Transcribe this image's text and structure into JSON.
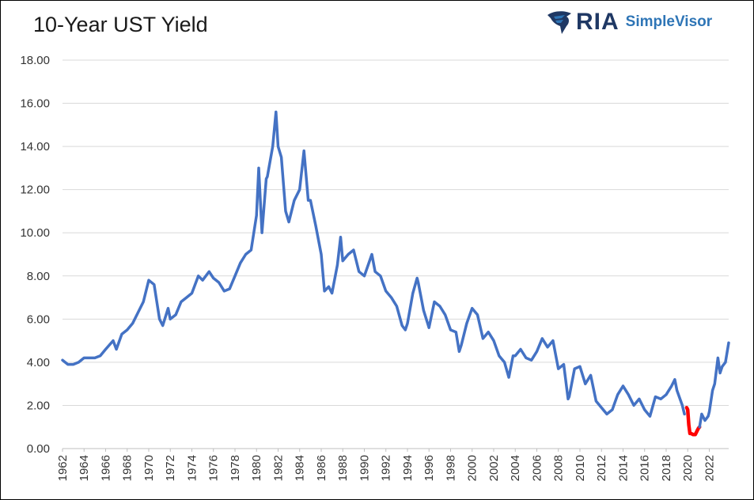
{
  "header": {
    "title": "10-Year UST Yield",
    "logo_ria": "RIA",
    "logo_simplevisor": "SimpleVisor"
  },
  "colors": {
    "series_main": "#4472c4",
    "series_highlight": "#ff0000",
    "grid": "#d9d9d9",
    "logo_dark": "#1f3864",
    "logo_blue": "#2e75b6"
  },
  "chart_data": {
    "type": "line",
    "title": "10-Year UST Yield",
    "xlabel": "",
    "ylabel": "",
    "xlim": [
      1962,
      2023.8
    ],
    "ylim": [
      0,
      18
    ],
    "y_ticks": [
      "0.00",
      "2.00",
      "4.00",
      "6.00",
      "8.00",
      "10.00",
      "12.00",
      "14.00",
      "16.00",
      "18.00"
    ],
    "x_ticks": [
      "1962",
      "1964",
      "1966",
      "1968",
      "1970",
      "1972",
      "1974",
      "1976",
      "1978",
      "1980",
      "1982",
      "1984",
      "1986",
      "1988",
      "1990",
      "1992",
      "1994",
      "1996",
      "1998",
      "2000",
      "2002",
      "2004",
      "2006",
      "2008",
      "2010",
      "2012",
      "2014",
      "2016",
      "2018",
      "2020",
      "2022"
    ],
    "grid": true,
    "legend": "none",
    "series": [
      {
        "color": "#4472c4",
        "x": [
          1962.0,
          1962.5,
          1963.0,
          1963.5,
          1964.0,
          1964.5,
          1965.0,
          1965.5,
          1966.0,
          1966.7,
          1967.0,
          1967.5,
          1968.0,
          1968.5,
          1969.0,
          1969.5,
          1970.0,
          1970.5,
          1971.0,
          1971.3,
          1971.8,
          1972.0,
          1972.5,
          1973.0,
          1973.5,
          1974.0,
          1974.6,
          1975.0,
          1975.6,
          1976.0,
          1976.5,
          1977.0,
          1977.5,
          1978.0,
          1978.5,
          1979.0,
          1979.5,
          1980.0,
          1980.2,
          1980.5,
          1980.9,
          1981.0,
          1981.5,
          1981.8,
          1982.0,
          1982.3,
          1982.7,
          1983.0,
          1983.5,
          1984.0,
          1984.4,
          1984.8,
          1985.0,
          1985.5,
          1986.0,
          1986.3,
          1986.7,
          1987.0,
          1987.5,
          1987.8,
          1988.0,
          1988.5,
          1989.0,
          1989.5,
          1990.0,
          1990.7,
          1991.0,
          1991.5,
          1992.0,
          1992.5,
          1993.0,
          1993.5,
          1993.8,
          1994.0,
          1994.5,
          1994.9,
          1995.0,
          1995.5,
          1996.0,
          1996.5,
          1997.0,
          1997.5,
          1998.0,
          1998.5,
          1998.8,
          1999.0,
          1999.5,
          2000.0,
          2000.5,
          2001.0,
          2001.5,
          2002.0,
          2002.5,
          2003.0,
          2003.4,
          2003.8,
          2004.0,
          2004.5,
          2005.0,
          2005.5,
          2006.0,
          2006.5,
          2007.0,
          2007.5,
          2008.0,
          2008.5,
          2008.9,
          2009.0,
          2009.5,
          2010.0,
          2010.5,
          2011.0,
          2011.5,
          2012.0,
          2012.5,
          2013.0,
          2013.5,
          2014.0,
          2014.5,
          2015.0,
          2015.5,
          2016.0,
          2016.5,
          2017.0,
          2017.5,
          2018.0,
          2018.5,
          2018.8,
          2019.0,
          2019.5,
          2019.7
        ],
        "y": [
          4.1,
          3.9,
          3.9,
          4.0,
          4.2,
          4.2,
          4.2,
          4.3,
          4.6,
          5.0,
          4.6,
          5.3,
          5.5,
          5.8,
          6.3,
          6.8,
          7.8,
          7.6,
          6.0,
          5.7,
          6.5,
          6.0,
          6.2,
          6.8,
          7.0,
          7.2,
          8.0,
          7.8,
          8.2,
          7.9,
          7.7,
          7.3,
          7.4,
          8.0,
          8.6,
          9.0,
          9.2,
          10.8,
          13.0,
          10.0,
          12.5,
          12.6,
          14.0,
          15.6,
          14.0,
          13.5,
          11.0,
          10.5,
          11.5,
          12.0,
          13.8,
          11.5,
          11.5,
          10.3,
          9.0,
          7.3,
          7.5,
          7.2,
          8.5,
          9.8,
          8.7,
          9.0,
          9.2,
          8.2,
          8.0,
          9.0,
          8.2,
          8.0,
          7.3,
          7.0,
          6.6,
          5.7,
          5.5,
          5.8,
          7.2,
          7.9,
          7.7,
          6.4,
          5.6,
          6.8,
          6.6,
          6.2,
          5.5,
          5.4,
          4.5,
          4.8,
          5.8,
          6.5,
          6.2,
          5.1,
          5.4,
          5.0,
          4.3,
          4.0,
          3.3,
          4.3,
          4.3,
          4.6,
          4.2,
          4.1,
          4.5,
          5.1,
          4.7,
          5.0,
          3.7,
          3.9,
          2.3,
          2.4,
          3.7,
          3.8,
          3.0,
          3.4,
          2.2,
          1.9,
          1.6,
          1.8,
          2.5,
          2.9,
          2.5,
          2.0,
          2.3,
          1.8,
          1.5,
          2.4,
          2.3,
          2.5,
          2.9,
          3.2,
          2.7,
          2.0,
          1.6
        ]
      },
      {
        "color": "#ff0000",
        "x": [
          2019.9,
          2020.0,
          2020.1,
          2020.2,
          2020.3,
          2020.5,
          2020.7,
          2020.9,
          2021.0,
          2021.1
        ],
        "y": [
          1.9,
          1.8,
          1.1,
          0.7,
          0.7,
          0.65,
          0.65,
          0.85,
          0.95,
          1.0
        ]
      },
      {
        "color": "#4472c4",
        "x": [
          2021.1,
          2021.3,
          2021.6,
          2021.9,
          2022.0,
          2022.3,
          2022.5,
          2022.8,
          2023.0,
          2023.2,
          2023.5,
          2023.8
        ],
        "y": [
          1.0,
          1.6,
          1.3,
          1.5,
          1.7,
          2.7,
          3.0,
          4.2,
          3.5,
          3.8,
          4.0,
          4.9
        ]
      }
    ]
  }
}
